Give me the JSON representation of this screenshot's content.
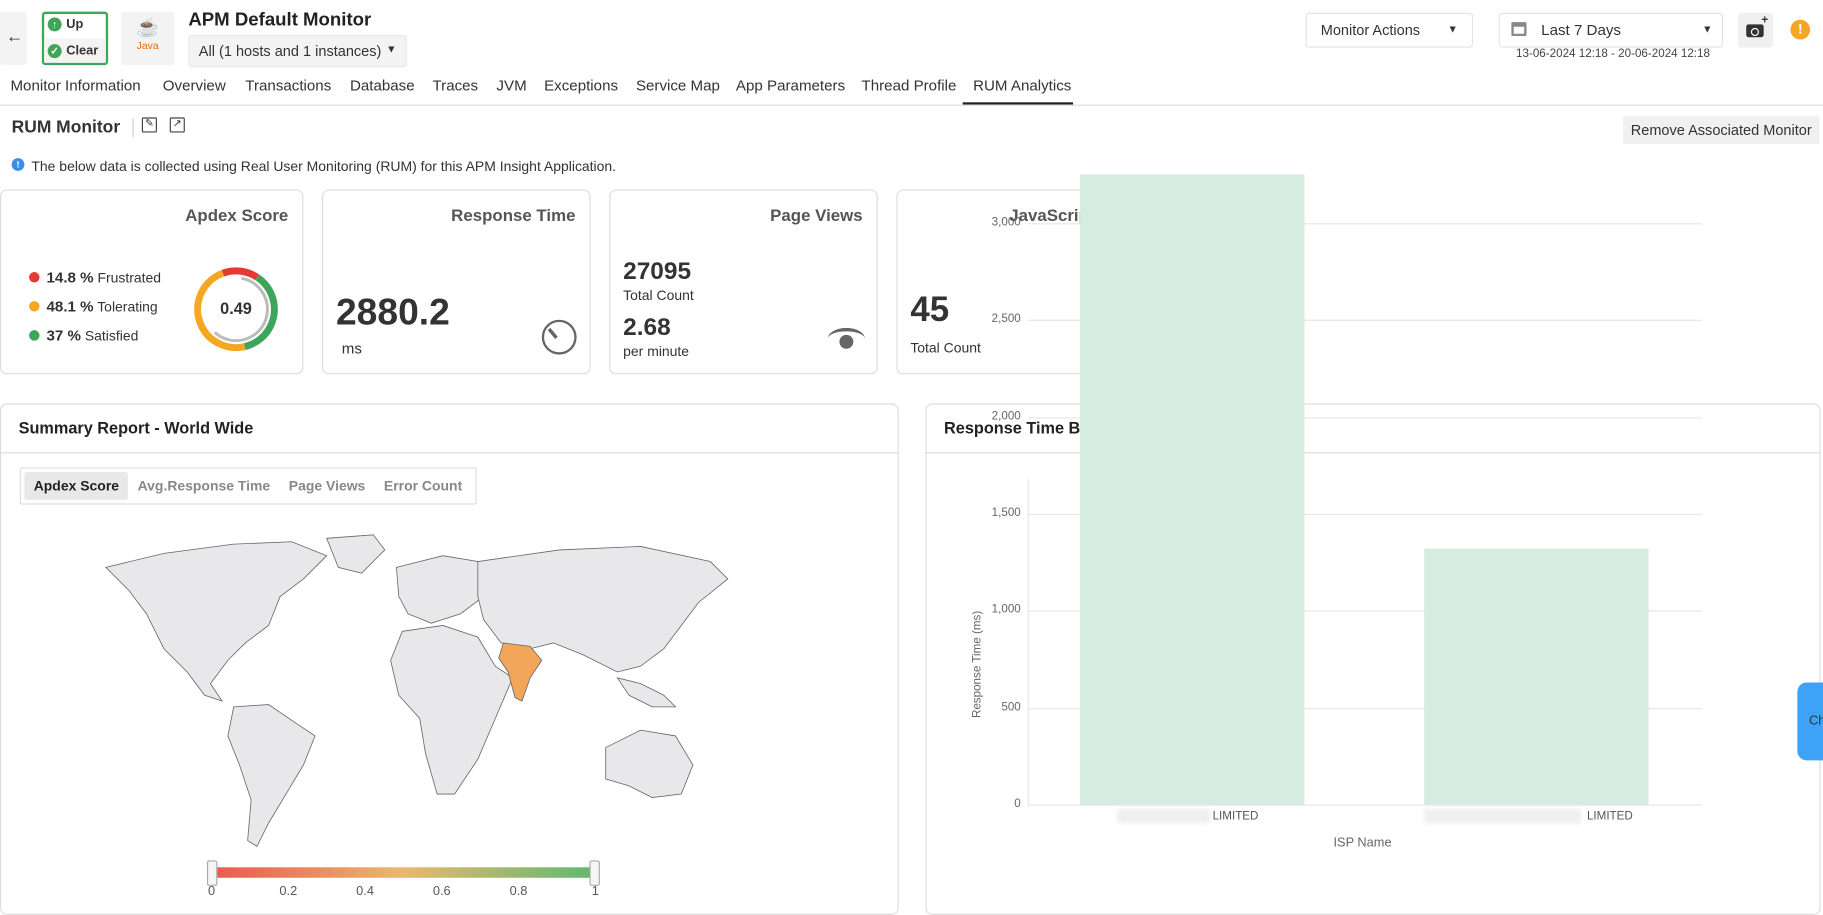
{
  "header": {
    "title": "APM Default Monitor",
    "status_up": "Up",
    "status_clear": "Clear",
    "app_type": "Java",
    "instance_select": "All (1 hosts and 1 instances)",
    "monitor_actions": "Monitor Actions",
    "period": "Last 7 Days",
    "date_range": "13-06-2024 12:18 - 20-06-2024 12:18"
  },
  "tabs": [
    "Monitor Information",
    "Overview",
    "Transactions",
    "Database",
    "Traces",
    "JVM",
    "Exceptions",
    "Service Map",
    "App Parameters",
    "Thread Profile",
    "RUM Analytics"
  ],
  "active_tab": "RUM Analytics",
  "rum": {
    "title": "RUM Monitor",
    "remove_button": "Remove Associated Monitor",
    "info": "The below data is collected using Real User Monitoring (RUM) for this APM Insight Application."
  },
  "cards": {
    "apdex": {
      "title": "Apdex Score",
      "score": "0.49",
      "items": [
        {
          "pct": "14.8 %",
          "label": "Frustrated",
          "color": "#e53935",
          "value": 14.8
        },
        {
          "pct": "48.1 %",
          "label": "Tolerating",
          "color": "#f5a623",
          "value": 48.1
        },
        {
          "pct": "37 %",
          "label": "Satisfied",
          "color": "#3fa55b",
          "value": 37
        }
      ]
    },
    "response_time": {
      "title": "Response Time",
      "value": "2880.2",
      "unit": "ms"
    },
    "page_views": {
      "title": "Page Views",
      "total": "27095",
      "total_label": "Total Count",
      "rate": "2.68",
      "rate_label": "per minute"
    },
    "js_errors": {
      "title": "JavaScript Errors",
      "value": "45",
      "label": "Total Count"
    }
  },
  "summary": {
    "title": "Summary Report - World Wide",
    "tabs": [
      "Apdex Score",
      "Avg.Response Time",
      "Page Views",
      "Error Count"
    ],
    "active_tab": "Apdex Score",
    "scale_labels": [
      "0",
      "0.2",
      "0.4",
      "0.6",
      "0.8",
      "1"
    ],
    "highlight_color": "#f2a65a"
  },
  "side_tab": "Ch",
  "chart_data": {
    "type": "bar",
    "title": "Response Time By ISP (Top 10)",
    "xlabel": "ISP Name",
    "ylabel": "Response Time (ms)",
    "categories": [
      "LIMITED",
      "LIMITED"
    ],
    "values": [
      3255,
      1320
    ],
    "ylim": [
      0,
      3300
    ],
    "yticks": [
      "0",
      "500",
      "1,000",
      "1,500",
      "2,000",
      "2,500",
      "3,000"
    ],
    "grid": true,
    "bar_color": "#d4ede0"
  }
}
